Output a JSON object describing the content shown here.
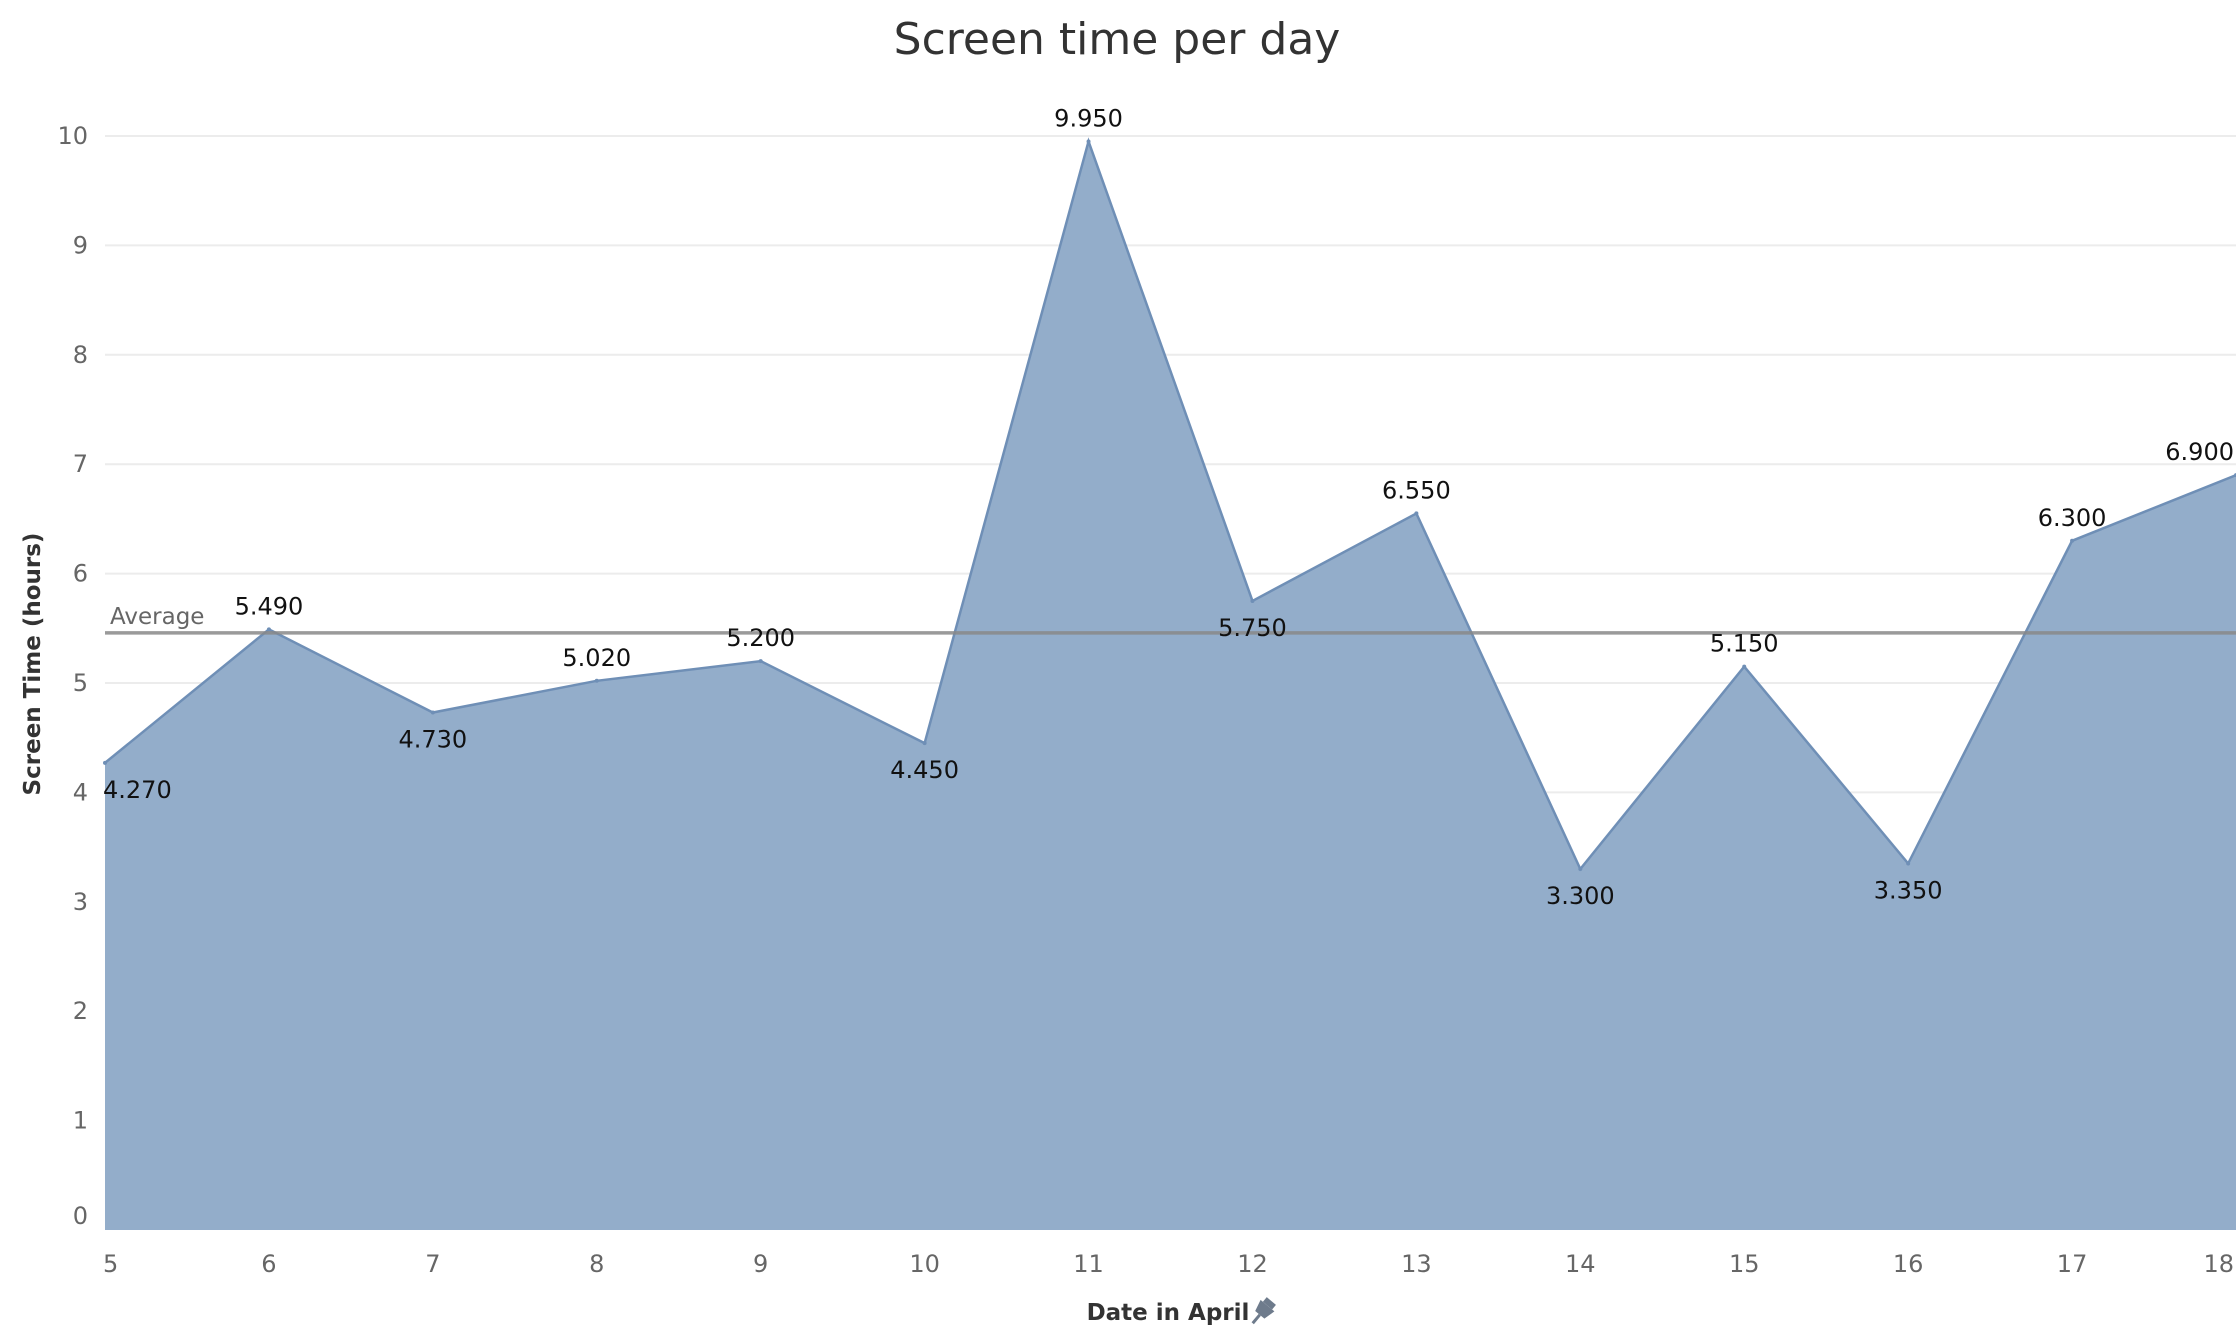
{
  "chart_data": {
    "type": "area",
    "title": "Screen time per day",
    "xlabel": "Date in April",
    "ylabel": "Screen Time (hours)",
    "x": [
      5,
      6,
      7,
      8,
      9,
      10,
      11,
      12,
      13,
      14,
      15,
      16,
      17,
      18
    ],
    "values": [
      4.27,
      5.49,
      4.73,
      5.02,
      5.2,
      4.45,
      9.95,
      5.75,
      6.55,
      3.3,
      5.15,
      3.35,
      6.3,
      6.9
    ],
    "value_labels": [
      "4.270",
      "5.490",
      "4.730",
      "5.020",
      "5.200",
      "4.450",
      "9.950",
      "5.750",
      "6.550",
      "3.300",
      "5.150",
      "3.350",
      "6.300",
      "6.900"
    ],
    "label_position": [
      "below",
      "above",
      "below",
      "above",
      "above",
      "below",
      "above",
      "below",
      "above",
      "below",
      "above",
      "below",
      "above",
      "above"
    ],
    "x_ticks": [
      "5",
      "6",
      "7",
      "8",
      "9",
      "10",
      "11",
      "12",
      "13",
      "14",
      "15",
      "16",
      "17",
      "18"
    ],
    "y_ticks": [
      "0",
      "1",
      "2",
      "3",
      "4",
      "5",
      "6",
      "7",
      "8",
      "9",
      "10"
    ],
    "ylim": [
      0,
      10.5
    ],
    "xlim": [
      5,
      18
    ],
    "grid": true,
    "reference_line": {
      "label": "Average",
      "value": 5.458
    },
    "colors": {
      "area_fill": "#93adca",
      "area_stroke": "#6f8fb6",
      "reference_line": "#888888"
    },
    "xlabel_icon": "pin-icon"
  }
}
